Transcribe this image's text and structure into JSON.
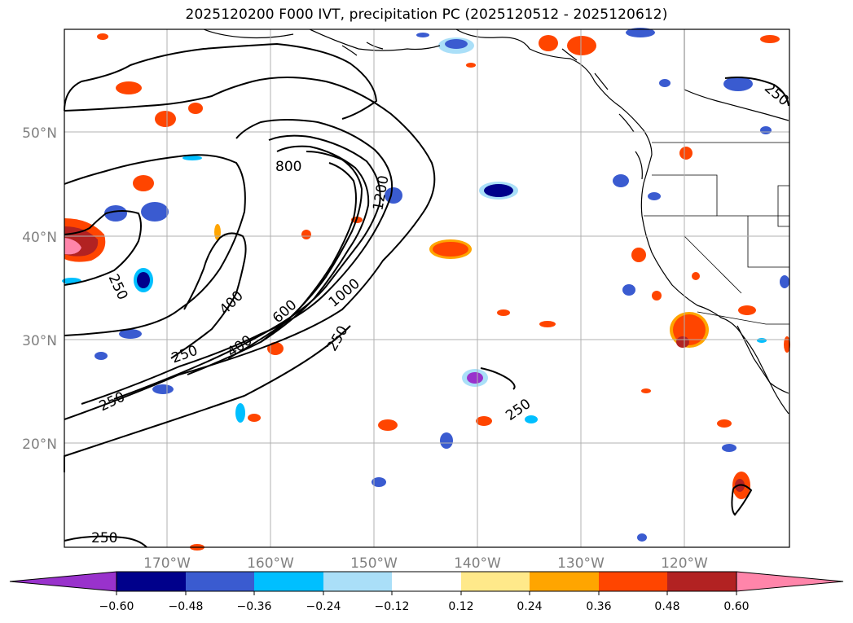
{
  "title": "2025120200 F000 IVT, precipitation PC (2025120512 - 2025120612)",
  "map": {
    "lat_labels": [
      "50°N",
      "40°N",
      "30°N",
      "20°N"
    ],
    "lat_values": [
      50,
      40,
      30,
      20
    ],
    "lon_labels": [
      "170°W",
      "160°W",
      "150°W",
      "140°W",
      "130°W",
      "120°W"
    ],
    "lon_values": [
      -170,
      -160,
      -150,
      -140,
      -130,
      -120
    ],
    "extent": {
      "lon_min": -180,
      "lon_max": -110,
      "lat_min": 10,
      "lat_max": 60
    },
    "ivt_contour_labels": [
      "250",
      "250",
      "250",
      "250",
      "250",
      "250",
      "250",
      "400",
      "400",
      "600",
      "800",
      "1000",
      "1200"
    ]
  },
  "colorbar": {
    "tick_labels": [
      "−0.60",
      "−0.48",
      "−0.36",
      "−0.24",
      "−0.12",
      "0.12",
      "0.24",
      "0.36",
      "0.48",
      "0.60"
    ],
    "colors": [
      "#9932cc",
      "#00008b",
      "#3a5bd0",
      "#00bfff",
      "#aadff8",
      "#ffffff",
      "#ffe98a",
      "#ffa500",
      "#ff4500",
      "#b22222",
      "#ff85aa"
    ]
  },
  "chart_data": {
    "type": "heatmap",
    "title": "2025120200 F000 IVT, precipitation PC (2025120512 - 2025120612)",
    "xlabel": "",
    "ylabel": "",
    "x_range": [
      -180,
      -110
    ],
    "y_range": [
      10,
      60
    ],
    "levels": [
      -0.6,
      -0.48,
      -0.36,
      -0.24,
      -0.12,
      0.12,
      0.24,
      0.36,
      0.48,
      0.6
    ],
    "contour_levels": [
      250,
      400,
      600,
      800,
      1000,
      1200
    ]
  }
}
